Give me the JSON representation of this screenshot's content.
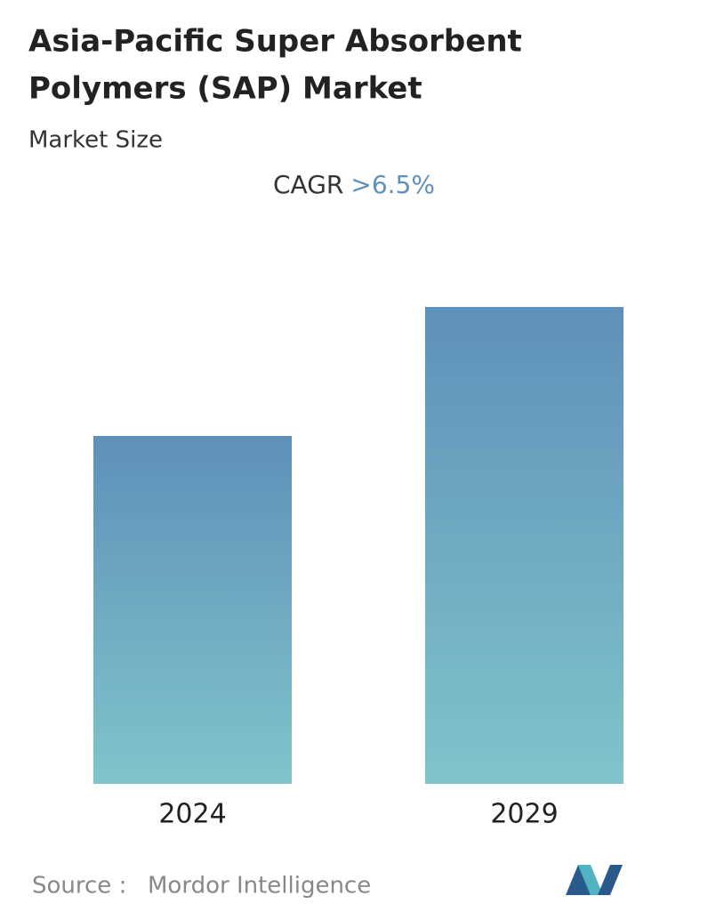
{
  "chart_data": {
    "type": "bar",
    "title_lines": [
      "Asia-Pacific Super Absorbent",
      "Polymers (SAP) Market"
    ],
    "subtitle": "Market Size",
    "cagr_label": "CAGR",
    "cagr_value": ">6.5%",
    "categories": [
      "2024",
      "2029"
    ],
    "values": [
      391,
      536
    ],
    "ylim": [
      0,
      536
    ],
    "source_label": "Source :",
    "source": "Mordor Intelligence"
  }
}
